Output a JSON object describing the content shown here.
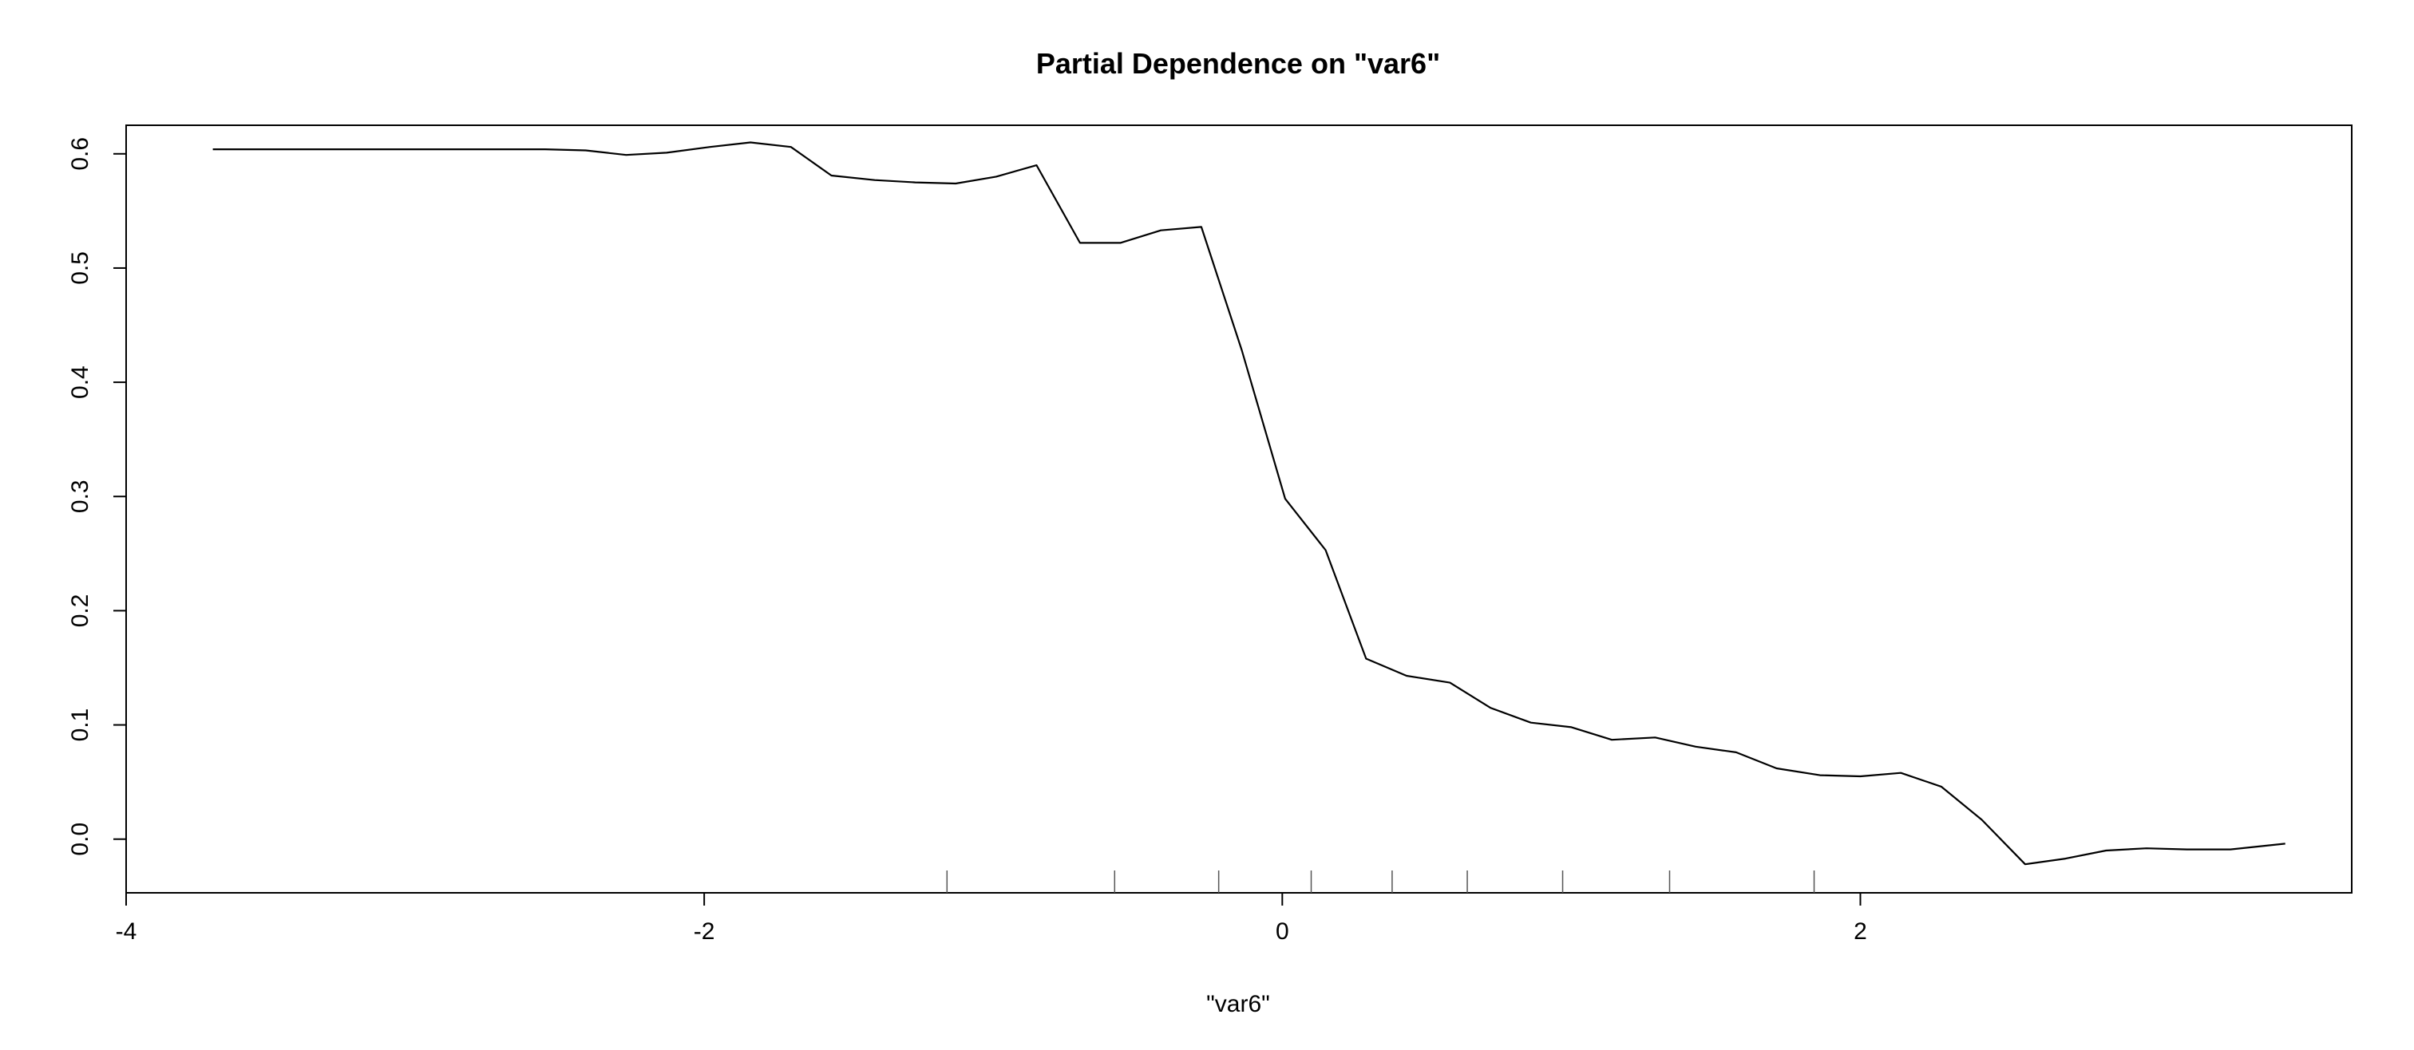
{
  "chart_data": {
    "type": "line",
    "title": "Partial Dependence on \"var6\"",
    "xlabel": "\"var6\"",
    "ylabel": "",
    "xlim": [
      -4,
      3.7
    ],
    "ylim": [
      -0.047,
      0.625
    ],
    "xticks": [
      -4,
      -2,
      0,
      2
    ],
    "xtick_labels": [
      "-4",
      "-2",
      "0",
      "2"
    ],
    "yticks": [
      0.0,
      0.1,
      0.2,
      0.3,
      0.4,
      0.5,
      0.6
    ],
    "ytick_labels": [
      "0.0",
      "0.1",
      "0.2",
      "0.3",
      "0.4",
      "0.5",
      "0.6"
    ],
    "grid": false,
    "legend": "none",
    "line_color": "#000000",
    "series": [
      {
        "x": [
          -3.7,
          -3.4,
          -3.1,
          -2.8,
          -2.55,
          -2.41,
          -2.27,
          -2.13,
          -1.98,
          -1.84,
          -1.7,
          -1.56,
          -1.41,
          -1.27,
          -1.13,
          -0.99,
          -0.85,
          -0.7,
          -0.56,
          -0.42,
          -0.28,
          -0.14,
          0.01,
          0.15,
          0.29,
          0.43,
          0.58,
          0.72,
          0.86,
          1.0,
          1.14,
          1.29,
          1.43,
          1.57,
          1.71,
          1.86,
          2.0,
          2.14,
          2.28,
          2.42,
          2.57,
          2.71,
          2.85,
          2.99,
          3.13,
          3.28,
          3.47
        ],
        "y": [
          0.604,
          0.604,
          0.604,
          0.604,
          0.604,
          0.603,
          0.599,
          0.601,
          0.606,
          0.61,
          0.606,
          0.581,
          0.577,
          0.575,
          0.574,
          0.58,
          0.59,
          0.522,
          0.522,
          0.533,
          0.536,
          0.428,
          0.298,
          0.253,
          0.158,
          0.143,
          0.137,
          0.115,
          0.102,
          0.098,
          0.087,
          0.089,
          0.081,
          0.076,
          0.062,
          0.056,
          0.055,
          0.058,
          0.046,
          0.017,
          -0.022,
          -0.017,
          -0.01,
          -0.008,
          -0.009,
          -0.009,
          -0.004
        ]
      }
    ],
    "rug_x": [
      -1.16,
      -0.58,
      -0.22,
      0.1,
      0.38,
      0.64,
      0.97,
      1.34,
      1.84
    ]
  }
}
